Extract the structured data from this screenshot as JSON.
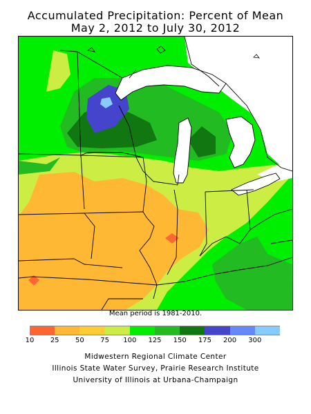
{
  "title": {
    "line1": "Accumulated Precipitation: Percent of Mean",
    "line2": "May 2, 2012 to July 30, 2012"
  },
  "note": "Mean period is 1981-2010.",
  "legend": {
    "labels": [
      "10",
      "25",
      "50",
      "75",
      "100",
      "125",
      "150",
      "175",
      "200",
      "300"
    ],
    "colors": [
      "#ff6633",
      "#ffb833",
      "#ffcc33",
      "#ccee44",
      "#00ee00",
      "#22bb22",
      "#117711",
      "#4444cc",
      "#6688ff",
      "#88ccff"
    ]
  },
  "credits": [
    "Midwestern Regional Climate Center",
    "Illinois State Water Survey, Prairie Research Institute",
    "University of Illinois at Urbana-Champaign"
  ],
  "map_colors": {
    "water": "#ffffff",
    "orange": "#ffb833",
    "red": "#ff6633",
    "yellow_green": "#ccee44",
    "bright_green": "#00ee00",
    "green": "#22bb22",
    "dark_green": "#117711",
    "blue": "#4444cc",
    "light_blue": "#88ccff"
  }
}
